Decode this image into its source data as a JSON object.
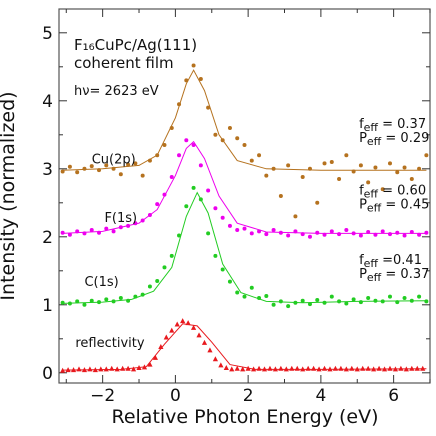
{
  "chart_data": {
    "type": "scatter",
    "title_lines": [
      "F₁₆CuPc/Ag(111)",
      "coherent film",
      "hν= 2623 eV"
    ],
    "xlabel": "Relative Photon Energy (eV)",
    "ylabel": "Intensity (normalized)",
    "xlim": [
      -3.2,
      7.0
    ],
    "ylim": [
      -0.15,
      5.35
    ],
    "xticks": [
      -2,
      0,
      2,
      4,
      6
    ],
    "xtick_labels": [
      "−2",
      "0",
      "2",
      "4",
      "6"
    ],
    "yticks": [
      0,
      1,
      2,
      3,
      4,
      5
    ],
    "ytick_labels": [
      "0",
      "1",
      "2",
      "3",
      "4",
      "5"
    ],
    "series": [
      {
        "name": "reflectivity",
        "label": "reflectivity",
        "color": "#e8191e",
        "marker": "triangle",
        "label_x": -2.75,
        "label_y": 0.38,
        "x": [
          -3.1,
          -2.95,
          -2.8,
          -2.65,
          -2.5,
          -2.35,
          -2.2,
          -2.05,
          -1.9,
          -1.75,
          -1.6,
          -1.45,
          -1.3,
          -1.15,
          -1.0,
          -0.85,
          -0.7,
          -0.55,
          -0.4,
          -0.25,
          -0.1,
          0.05,
          0.2,
          0.35,
          0.5,
          0.65,
          0.8,
          0.95,
          1.1,
          1.25,
          1.4,
          1.55,
          1.7,
          1.85,
          2.0,
          2.15,
          2.3,
          2.45,
          2.6,
          2.75,
          2.9,
          3.05,
          3.2,
          3.35,
          3.5,
          3.65,
          3.8,
          3.95,
          4.1,
          4.25,
          4.4,
          4.55,
          4.7,
          4.85,
          5.0,
          5.15,
          5.3,
          5.45,
          5.6,
          5.75,
          5.9,
          6.05,
          6.2,
          6.35,
          6.5,
          6.65,
          6.8
        ],
        "y": [
          0.03,
          0.04,
          0.04,
          0.05,
          0.04,
          0.05,
          0.04,
          0.05,
          0.05,
          0.06,
          0.05,
          0.06,
          0.06,
          0.05,
          0.07,
          0.08,
          0.12,
          0.22,
          0.38,
          0.52,
          0.62,
          0.71,
          0.76,
          0.73,
          0.66,
          0.55,
          0.44,
          0.33,
          0.2,
          0.11,
          0.07,
          0.05,
          0.06,
          0.05,
          0.06,
          0.05,
          0.06,
          0.05,
          0.06,
          0.05,
          0.06,
          0.05,
          0.06,
          0.06,
          0.05,
          0.06,
          0.06,
          0.05,
          0.06,
          0.05,
          0.06,
          0.06,
          0.05,
          0.06,
          0.05,
          0.06,
          0.06,
          0.05,
          0.06,
          0.05,
          0.06,
          0.05,
          0.06,
          0.05,
          0.06,
          0.06,
          0.06
        ],
        "fit_x": [
          -3.1,
          -1.5,
          -0.8,
          -0.3,
          0.2,
          0.6,
          1.0,
          1.5,
          2.2,
          4.0,
          6.9
        ],
        "fit_y": [
          0.04,
          0.05,
          0.09,
          0.42,
          0.72,
          0.69,
          0.45,
          0.12,
          0.05,
          0.05,
          0.06
        ],
        "fit_start": -0.8,
        "fit_end": 1.5
      },
      {
        "name": "C(1s)",
        "label": "C(1s)",
        "color": "#22cc22",
        "marker": "circle",
        "label_x": -2.5,
        "label_y": 1.28,
        "x": [
          -3.1,
          -2.9,
          -2.7,
          -2.5,
          -2.3,
          -2.1,
          -1.9,
          -1.7,
          -1.5,
          -1.3,
          -1.1,
          -0.9,
          -0.7,
          -0.5,
          -0.3,
          -0.1,
          0.1,
          0.3,
          0.5,
          0.7,
          0.9,
          1.1,
          1.3,
          1.5,
          1.7,
          1.9,
          2.1,
          2.3,
          2.5,
          2.7,
          2.9,
          3.1,
          3.3,
          3.5,
          3.7,
          3.9,
          4.1,
          4.3,
          4.5,
          4.7,
          4.9,
          5.1,
          5.3,
          5.5,
          5.7,
          5.9,
          6.1,
          6.3,
          6.5,
          6.7,
          6.9
        ],
        "y": [
          1.03,
          1.02,
          1.05,
          1.0,
          1.06,
          1.04,
          1.08,
          1.05,
          1.1,
          1.06,
          1.12,
          1.15,
          1.27,
          1.35,
          1.55,
          1.72,
          2.02,
          2.45,
          2.72,
          2.55,
          2.05,
          1.72,
          1.52,
          1.34,
          1.18,
          1.12,
          1.25,
          1.1,
          1.13,
          1.0,
          1.05,
          0.98,
          1.03,
          1.06,
          1.01,
          1.07,
          1.03,
          1.12,
          1.05,
          1.02,
          1.08,
          1.04,
          1.1,
          1.06,
          1.05,
          1.12,
          1.04,
          1.1,
          1.06,
          1.12,
          1.05
        ],
        "fit_x": [
          -3.1,
          -2.0,
          -1.2,
          -0.6,
          -0.1,
          0.3,
          0.6,
          0.9,
          1.3,
          1.8,
          2.5,
          3.5,
          5.0,
          6.9
        ],
        "fit_y": [
          1.02,
          1.04,
          1.08,
          1.2,
          1.55,
          2.3,
          2.65,
          2.35,
          1.6,
          1.18,
          1.05,
          1.03,
          1.05,
          1.06
        ]
      },
      {
        "name": "F(1s)",
        "label": "F(1s)",
        "color": "#ee00ee",
        "marker": "circle",
        "label_x": -1.95,
        "label_y": 2.22,
        "x": [
          -3.1,
          -2.9,
          -2.7,
          -2.5,
          -2.3,
          -2.1,
          -1.9,
          -1.7,
          -1.5,
          -1.3,
          -1.1,
          -0.9,
          -0.7,
          -0.5,
          -0.3,
          -0.1,
          0.1,
          0.3,
          0.5,
          0.7,
          0.9,
          1.1,
          1.3,
          1.5,
          1.7,
          1.9,
          2.1,
          2.3,
          2.5,
          2.7,
          2.9,
          3.1,
          3.3,
          3.5,
          3.7,
          3.9,
          4.1,
          4.3,
          4.5,
          4.7,
          4.9,
          5.1,
          5.3,
          5.5,
          5.7,
          5.9,
          6.1,
          6.3,
          6.5,
          6.7,
          6.9
        ],
        "y": [
          2.06,
          2.03,
          2.08,
          2.05,
          2.1,
          2.06,
          2.12,
          2.08,
          2.14,
          2.16,
          2.2,
          2.24,
          2.32,
          2.48,
          2.62,
          2.88,
          3.2,
          3.42,
          3.35,
          3.05,
          2.68,
          2.42,
          2.28,
          2.16,
          2.1,
          2.12,
          2.05,
          2.08,
          2.04,
          2.1,
          2.06,
          2.02,
          2.08,
          2.04,
          2.0,
          2.06,
          2.03,
          2.08,
          2.04,
          2.1,
          2.05,
          2.02,
          2.07,
          2.03,
          2.08,
          2.04,
          2.06,
          2.02,
          2.07,
          2.03,
          2.06
        ],
        "fit_x": [
          -3.1,
          -2.0,
          -1.0,
          -0.5,
          0.0,
          0.3,
          0.5,
          0.8,
          1.2,
          1.7,
          2.5,
          4.0,
          6.9
        ],
        "fit_y": [
          2.05,
          2.08,
          2.2,
          2.4,
          2.9,
          3.3,
          3.4,
          3.15,
          2.6,
          2.2,
          2.07,
          2.05,
          2.05
        ]
      },
      {
        "name": "Cu(2p)",
        "label": "Cu(2p)",
        "color": "#b5721f",
        "marker": "circle",
        "label_x": -2.3,
        "label_y": 3.08,
        "x": [
          -3.1,
          -2.9,
          -2.7,
          -2.5,
          -2.3,
          -2.1,
          -1.9,
          -1.7,
          -1.5,
          -1.3,
          -1.1,
          -0.9,
          -0.7,
          -0.5,
          -0.3,
          -0.1,
          0.1,
          0.3,
          0.5,
          0.7,
          0.9,
          1.1,
          1.3,
          1.5,
          1.7,
          1.9,
          2.1,
          2.3,
          2.5,
          2.7,
          2.9,
          3.1,
          3.3,
          3.5,
          3.7,
          3.9,
          4.1,
          4.3,
          4.5,
          4.7,
          4.9,
          5.1,
          5.3,
          5.5,
          5.7,
          5.9,
          6.1,
          6.3,
          6.5,
          6.7,
          6.9
        ],
        "y": [
          2.96,
          3.03,
          2.95,
          3.0,
          3.04,
          2.98,
          3.05,
          3.0,
          2.92,
          3.06,
          3.08,
          2.9,
          3.12,
          3.2,
          3.35,
          3.6,
          3.95,
          4.3,
          4.52,
          4.32,
          3.9,
          3.5,
          3.42,
          3.6,
          3.45,
          3.35,
          3.12,
          3.2,
          2.9,
          3.0,
          2.6,
          3.05,
          2.3,
          2.88,
          3.0,
          2.5,
          3.08,
          3.1,
          2.85,
          3.2,
          2.96,
          3.05,
          2.8,
          3.02,
          2.7,
          3.08,
          2.95,
          3.02,
          2.85,
          3.0,
          3.2
        ],
        "fit_x": [
          -3.1,
          -2.0,
          -1.0,
          -0.5,
          0.0,
          0.3,
          0.5,
          0.8,
          1.2,
          1.7,
          2.5,
          4.0,
          6.9
        ],
        "fit_y": [
          2.98,
          3.0,
          3.05,
          3.2,
          3.75,
          4.25,
          4.45,
          4.15,
          3.5,
          3.12,
          3.0,
          2.98,
          2.98
        ]
      }
    ],
    "annotations": [
      {
        "label": "Cu(2p)",
        "f_label": "f",
        "f_sub": "eff",
        "f_value": "= 0.37",
        "p_label": "P",
        "p_sub": "eff",
        "p_value": "= 0.29",
        "x": 5.05,
        "y": 3.6
      },
      {
        "label": "F(1s)",
        "f_label": "f",
        "f_sub": "eff",
        "f_value": "= 0.60",
        "p_label": "P",
        "p_sub": "eff",
        "p_value": "= 0.45",
        "x": 5.05,
        "y": 2.62
      },
      {
        "label": "C(1s)",
        "f_label": "f",
        "f_sub": "eff",
        "f_value": "=0.41",
        "p_label": "P",
        "p_sub": "eff",
        "p_value": "= 0.37",
        "x": 5.05,
        "y": 1.6
      }
    ],
    "grid": false,
    "legend": "none"
  }
}
